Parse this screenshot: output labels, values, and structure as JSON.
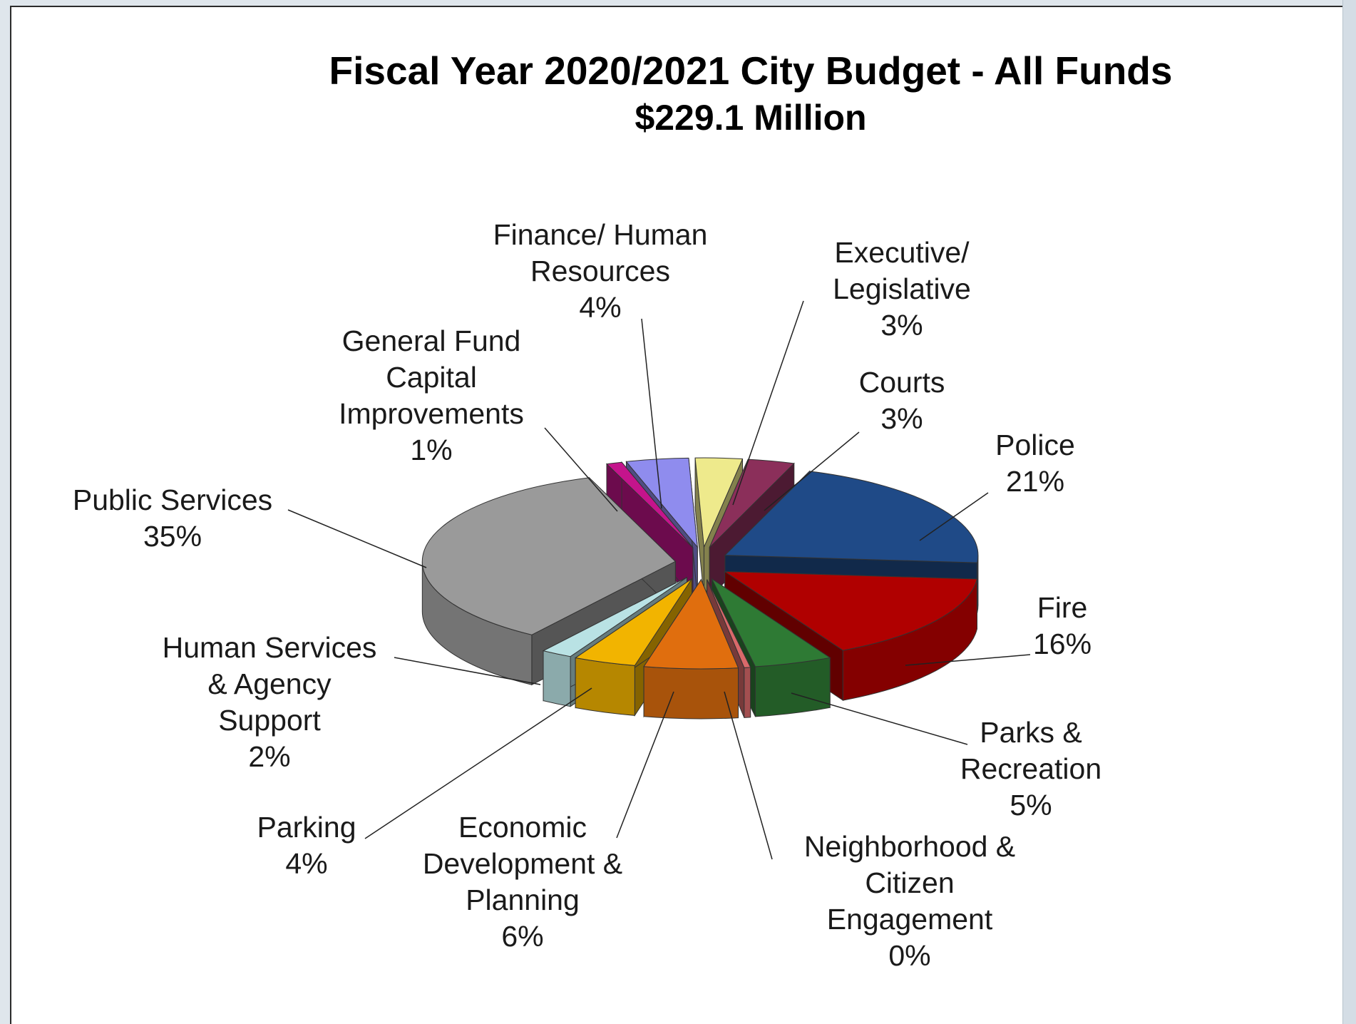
{
  "chart_data": {
    "type": "pie",
    "title": "Fiscal Year 2020/2021 City Budget - All Funds",
    "subtitle": "$229.1 Million",
    "slices": [
      {
        "label_lines": [
          "Executive/",
          "Legislative"
        ],
        "pct_label": "3%",
        "value": 3,
        "color": "#eeea8c"
      },
      {
        "label_lines": [
          "Courts"
        ],
        "pct_label": "3%",
        "value": 3,
        "color": "#8b2f5a"
      },
      {
        "label_lines": [
          "Police"
        ],
        "pct_label": "21%",
        "value": 21,
        "color": "#1f4a87"
      },
      {
        "label_lines": [
          "Fire"
        ],
        "pct_label": "16%",
        "value": 16,
        "color": "#b00000"
      },
      {
        "label_lines": [
          "Parks &",
          "Recreation"
        ],
        "pct_label": "5%",
        "value": 5,
        "color": "#2e7a34"
      },
      {
        "label_lines": [
          "Neighborhood &",
          "Citizen",
          "Engagement"
        ],
        "pct_label": "0%",
        "value": 0.4,
        "color": "#d9696a"
      },
      {
        "label_lines": [
          "Economic",
          "Development &",
          "Planning"
        ],
        "pct_label": "6%",
        "value": 6,
        "color": "#e06e0e"
      },
      {
        "label_lines": [
          "Parking"
        ],
        "pct_label": "4%",
        "value": 4,
        "color": "#f2b400"
      },
      {
        "label_lines": [
          "Human  Services",
          "& Agency",
          "Support"
        ],
        "pct_label": "2%",
        "value": 2,
        "color": "#b9e2e4"
      },
      {
        "label_lines": [
          "Public Services"
        ],
        "pct_label": "35%",
        "value": 35,
        "color": "#9a9a9a"
      },
      {
        "label_lines": [
          "General Fund",
          "Capital",
          "Improvements"
        ],
        "pct_label": "1%",
        "value": 1,
        "color": "#c4148c"
      },
      {
        "label_lines": [
          "Finance/ Human",
          "Resources"
        ],
        "pct_label": "4%",
        "value": 4,
        "color": "#8f8cee"
      }
    ]
  }
}
